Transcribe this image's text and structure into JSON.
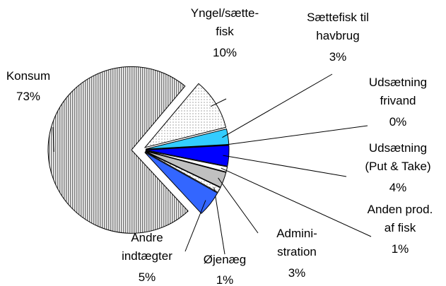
{
  "chart_data": {
    "type": "pie",
    "categories": [
      "Yngel/sætte-fisk",
      "Sættefisk til havbrug",
      "Udsætning frivand",
      "Udsætning (Put & Take)",
      "Anden prod. af fisk",
      "Admini-stration",
      "Øjenæg",
      "Andre indtægter",
      "Konsum"
    ],
    "values": [
      10,
      3,
      0,
      4,
      1,
      3,
      1,
      5,
      73
    ],
    "value_labels": [
      "10%",
      "3%",
      "0%",
      "4%",
      "1%",
      "3%",
      "1%",
      "5%",
      "73%"
    ],
    "colors": [
      "#f4f4f4",
      "#33ccff",
      "#000000",
      "#0000ff",
      "#ffffff",
      "#c0c0c0",
      "#ffffff",
      "#3366ff",
      "#b0b0b0"
    ]
  }
}
